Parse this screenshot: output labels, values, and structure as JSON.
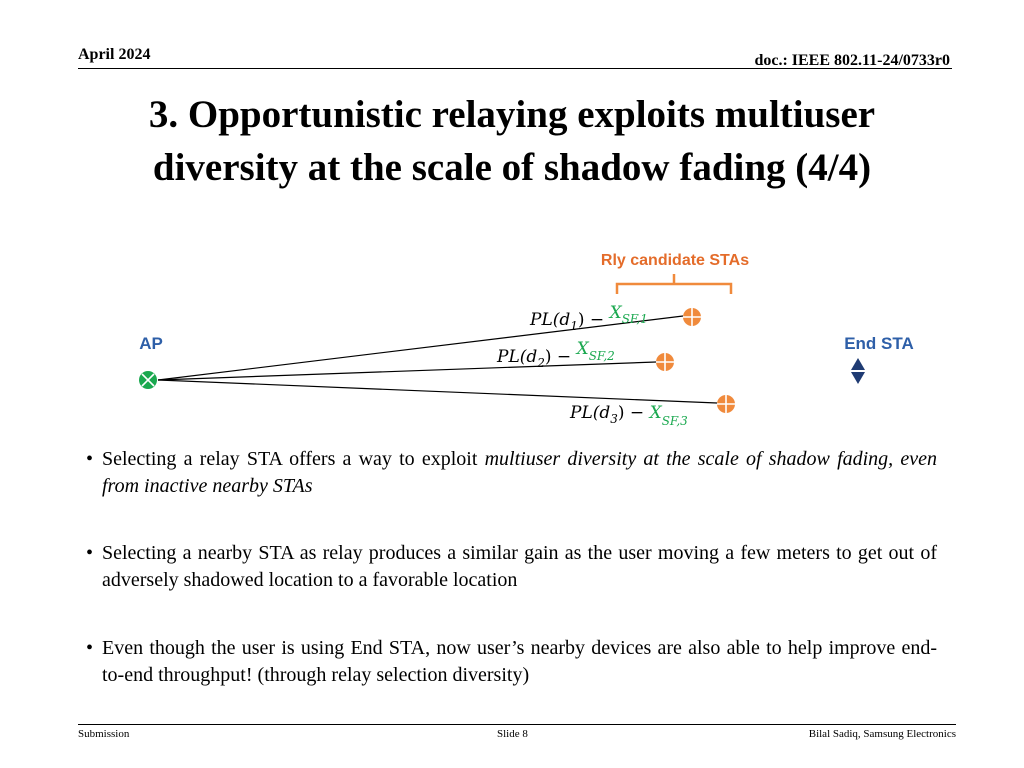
{
  "header": {
    "date": "April 2024",
    "doc_id": "doc.: IEEE 802.11-24/0733r0"
  },
  "slide": {
    "title_line1": "3. Opportunistic relaying exploits multiuser",
    "title_line2": "diversity at the scale of shadow fading (4/4)"
  },
  "diagram": {
    "ap_label": "AP",
    "end_sta_label": "End STA",
    "candidates_label": "Rly candidate STAs",
    "colors": {
      "accent_orange": "#f08a3c",
      "green": "#1aa84f",
      "navy": "#1f3b73",
      "label_blue": "#2e5fa8",
      "candidate_label": "#e46c2a"
    },
    "paths": [
      {
        "pl": "PL(d",
        "sub": "1",
        "close": ") − ",
        "x": "X",
        "xsub": "SF,1"
      },
      {
        "pl": "PL(d",
        "sub": "2",
        "close": ") − ",
        "x": "X",
        "xsub": "SF,2"
      },
      {
        "pl": "PL(d",
        "sub": "3",
        "close": ") − ",
        "x": "X",
        "xsub": "SF,3"
      }
    ]
  },
  "bullets": [
    {
      "mark": "•",
      "text_normal": "Selecting a relay STA offers a way to exploit ",
      "text_italic": "multiuser diversity at the scale of shadow fading, even from inactive nearby STAs"
    },
    {
      "mark": "•",
      "text": "Selecting a nearby STA as relay produces a similar gain as the user moving a few meters to get out of adversely shadowed location to a favorable location"
    },
    {
      "mark": "•",
      "text": "Even though the user is using End STA, now user’s nearby devices are also able to help improve end-to-end throughput! (through relay selection diversity)"
    }
  ],
  "footer": {
    "left": "Submission",
    "center": "Slide 8",
    "right": "Bilal Sadiq, Samsung Electronics"
  }
}
